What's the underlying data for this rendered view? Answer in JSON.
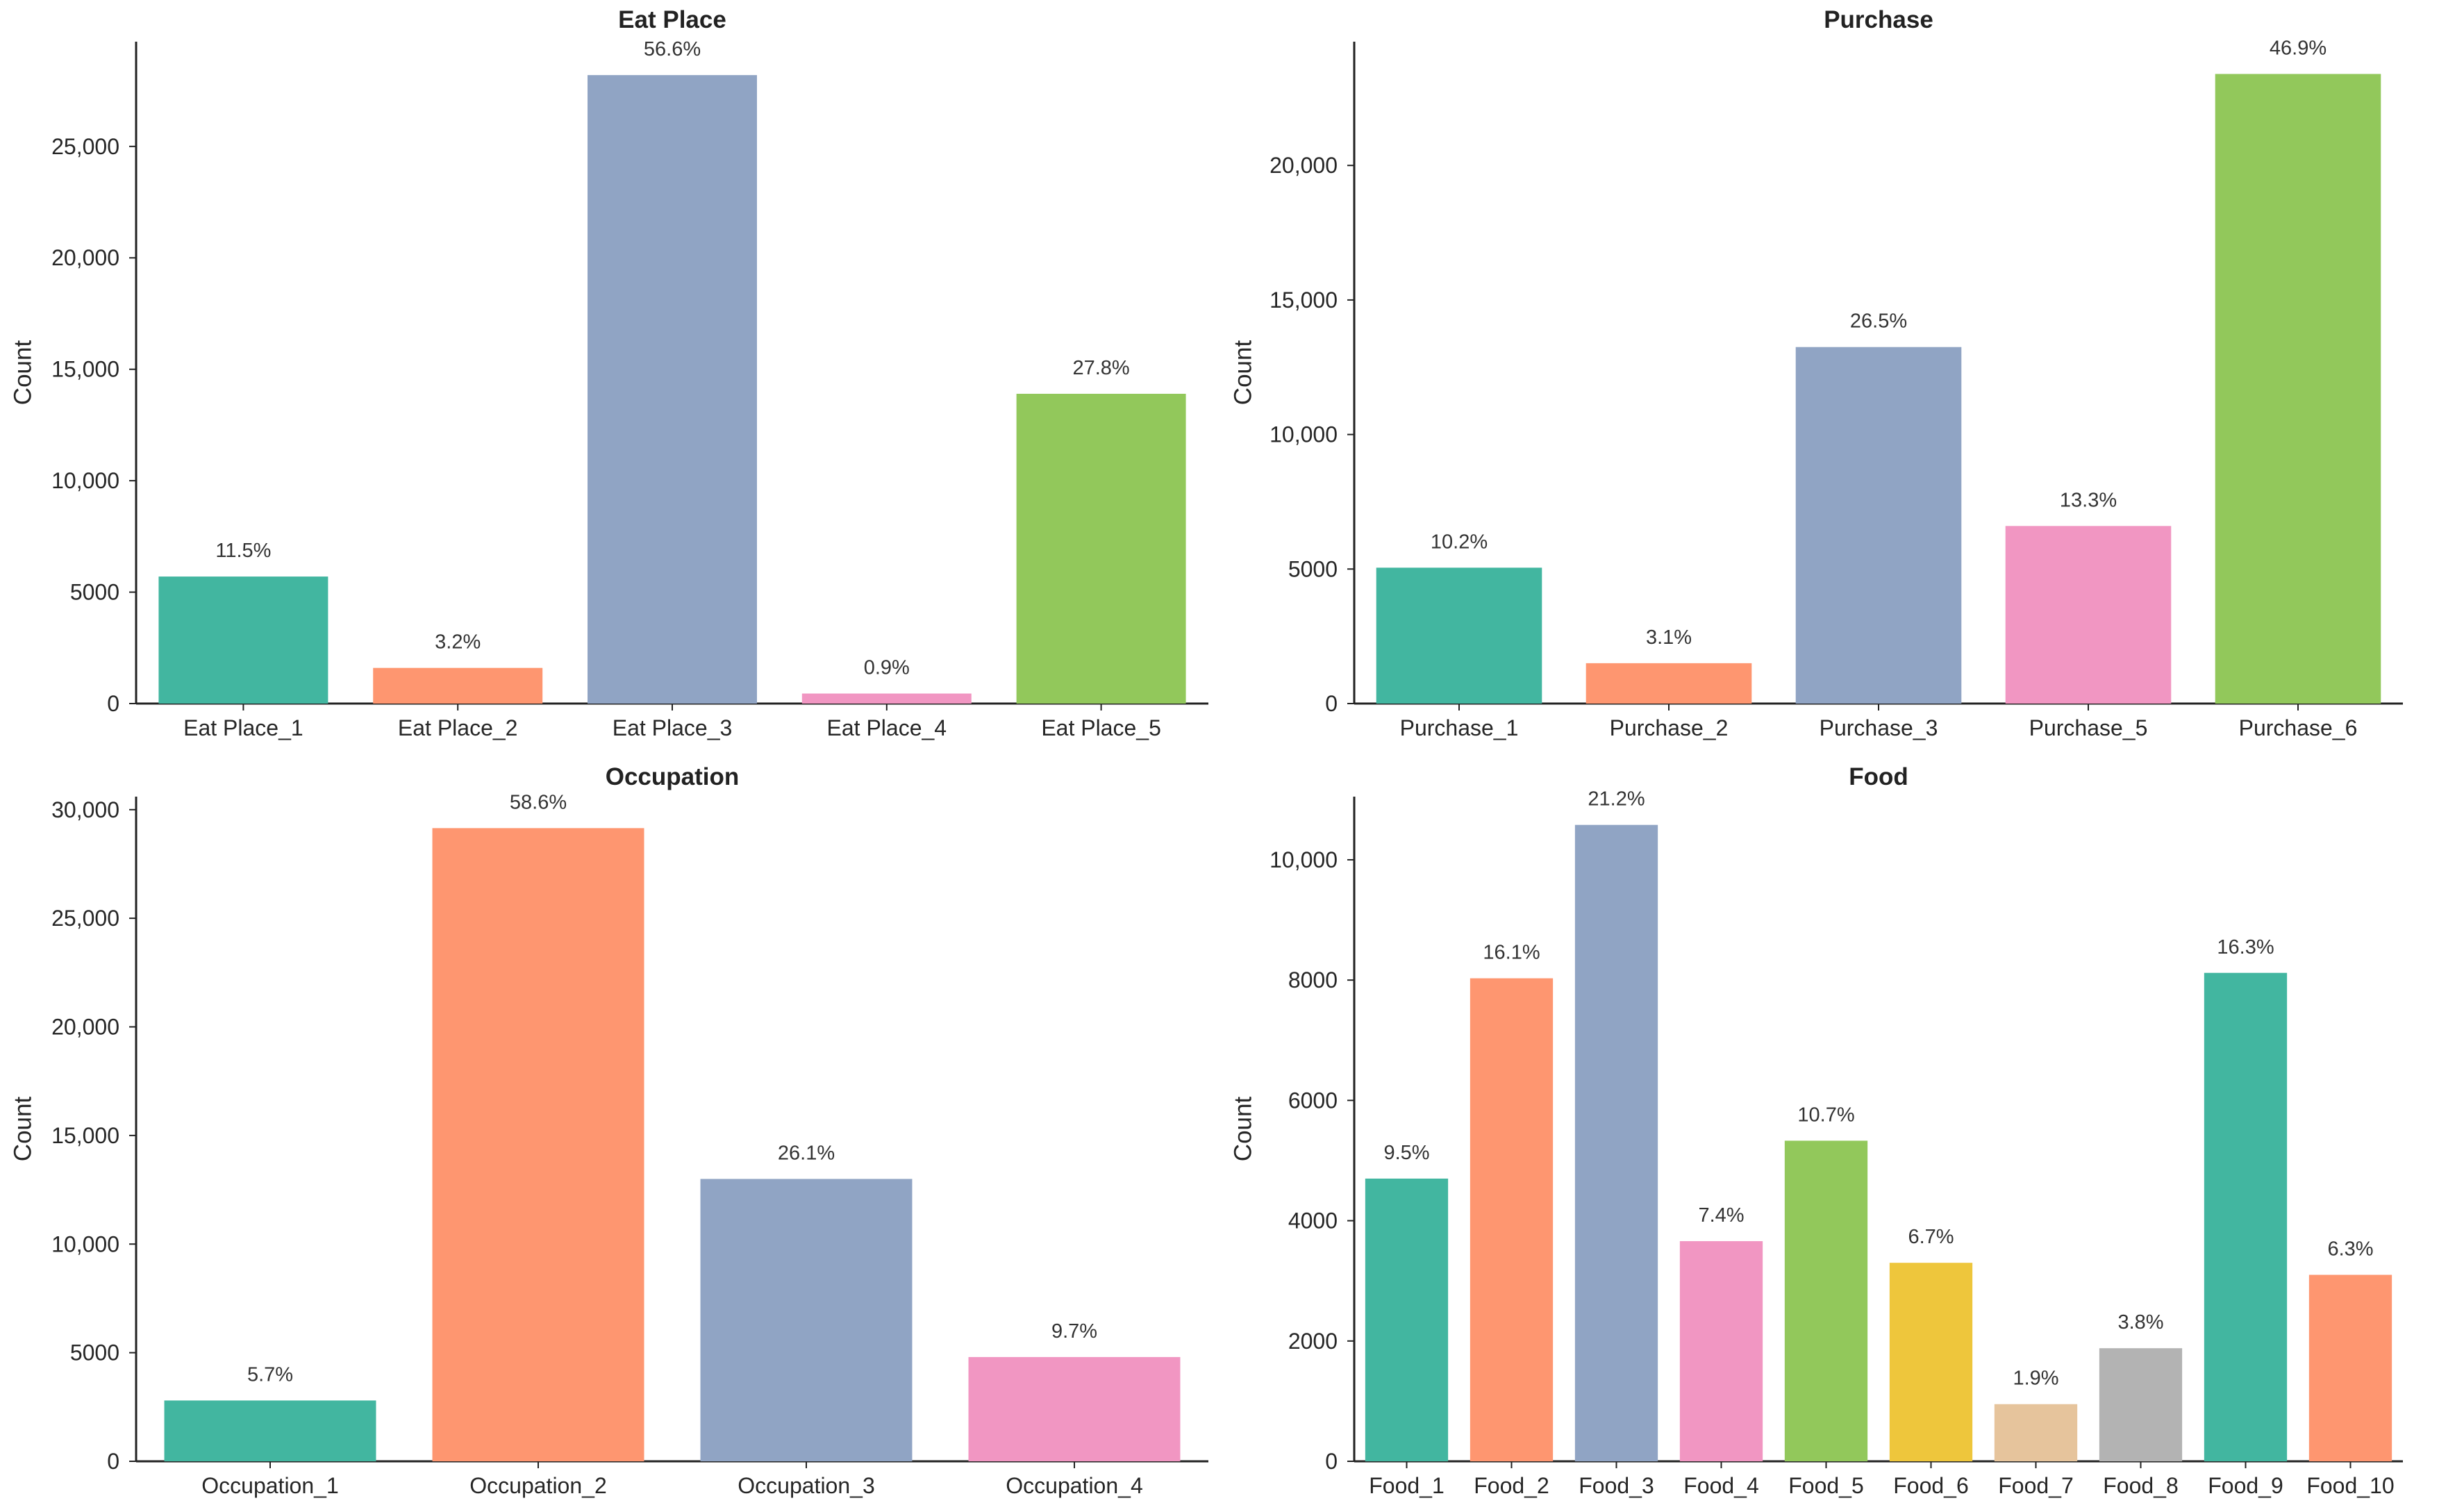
{
  "palette": [
    "#42b6a0",
    "#fe9670",
    "#90a4c4",
    "#f196c2",
    "#92c85b",
    "#eec63c",
    "#e6c49c",
    "#b3b3b3"
  ],
  "chart_data": [
    {
      "type": "bar",
      "title": "Eat Place",
      "xlabel": "",
      "ylabel": "Count",
      "ylim": [
        0,
        29700
      ],
      "yticks": [
        0,
        5000,
        10000,
        15000,
        20000,
        25000
      ],
      "ytick_labels": [
        "0",
        "5000",
        "10,000",
        "15,000",
        "20,000",
        "25,000"
      ],
      "categories": [
        "Eat Place_1",
        "Eat Place_2",
        "Eat Place_3",
        "Eat Place_4",
        "Eat Place_5"
      ],
      "values": [
        5700,
        1600,
        28200,
        450,
        13900
      ],
      "labels": [
        "11.5%",
        "3.2%",
        "56.6%",
        "0.9%",
        "27.8%"
      ],
      "color_index": [
        0,
        1,
        2,
        3,
        4
      ]
    },
    {
      "type": "bar",
      "title": "Purchase",
      "xlabel": "",
      "ylabel": "Count",
      "ylim": [
        0,
        24600
      ],
      "yticks": [
        0,
        5000,
        10000,
        15000,
        20000
      ],
      "ytick_labels": [
        "0",
        "5000",
        "10,000",
        "15,000",
        "20,000"
      ],
      "categories": [
        "Purchase_1",
        "Purchase_2",
        "Purchase_3",
        "Purchase_5",
        "Purchase_6"
      ],
      "values": [
        5050,
        1500,
        13250,
        6600,
        23400
      ],
      "labels": [
        "10.2%",
        "3.1%",
        "26.5%",
        "13.3%",
        "46.9%"
      ],
      "color_index": [
        0,
        1,
        2,
        3,
        4
      ]
    },
    {
      "type": "bar",
      "title": "Occupation",
      "xlabel": "",
      "ylabel": "Count",
      "ylim": [
        0,
        30600
      ],
      "yticks": [
        0,
        5000,
        10000,
        15000,
        20000,
        25000,
        30000
      ],
      "ytick_labels": [
        "0",
        "5000",
        "10,000",
        "15,000",
        "20,000",
        "25,000",
        "30,000"
      ],
      "categories": [
        "Occupation_1",
        "Occupation_2",
        "Occupation_3",
        "Occupation_4"
      ],
      "values": [
        2800,
        29150,
        13000,
        4800
      ],
      "labels": [
        "5.7%",
        "58.6%",
        "26.1%",
        "9.7%"
      ],
      "color_index": [
        0,
        1,
        2,
        3
      ]
    },
    {
      "type": "bar",
      "title": "Food",
      "xlabel": "",
      "ylabel": "Count",
      "ylim": [
        0,
        11050
      ],
      "yticks": [
        0,
        2000,
        4000,
        6000,
        8000,
        10000
      ],
      "ytick_labels": [
        "0",
        "2000",
        "4000",
        "6000",
        "8000",
        "10,000"
      ],
      "categories": [
        "Food_1",
        "Food_2",
        "Food_3",
        "Food_4",
        "Food_5",
        "Food_6",
        "Food_7",
        "Food_8",
        "Food_9",
        "Food_10"
      ],
      "values": [
        4700,
        8030,
        10580,
        3660,
        5330,
        3300,
        950,
        1880,
        8120,
        3100
      ],
      "labels": [
        "9.5%",
        "16.1%",
        "21.2%",
        "7.4%",
        "10.7%",
        "6.7%",
        "1.9%",
        "3.8%",
        "16.3%",
        "6.3%"
      ],
      "color_index": [
        0,
        1,
        2,
        3,
        4,
        5,
        6,
        7,
        0,
        1
      ]
    }
  ]
}
